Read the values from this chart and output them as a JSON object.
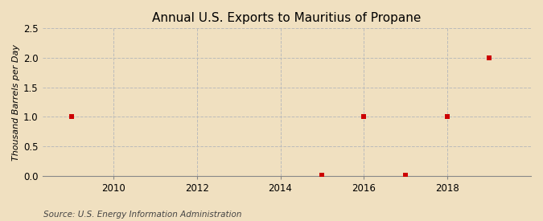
{
  "title": "Annual U.S. Exports to Mauritius of Propane",
  "ylabel": "Thousand Barrels per Day",
  "source": "Source: U.S. Energy Information Administration",
  "background_color": "#f0e0c0",
  "plot_bg_color": "#f5ecda",
  "x_data": [
    2009,
    2015,
    2016,
    2017,
    2018,
    2019
  ],
  "y_data": [
    1.0,
    0.005,
    1.0,
    0.005,
    1.0,
    2.0
  ],
  "xlim": [
    2008.3,
    2020.0
  ],
  "ylim": [
    0.0,
    2.5
  ],
  "yticks": [
    0.0,
    0.5,
    1.0,
    1.5,
    2.0,
    2.5
  ],
  "xticks": [
    2010,
    2012,
    2014,
    2016,
    2018
  ],
  "marker_color": "#cc0000",
  "marker_size": 4,
  "grid_color": "#bbbbbb",
  "title_fontsize": 11,
  "label_fontsize": 8,
  "tick_fontsize": 8.5,
  "source_fontsize": 7.5
}
